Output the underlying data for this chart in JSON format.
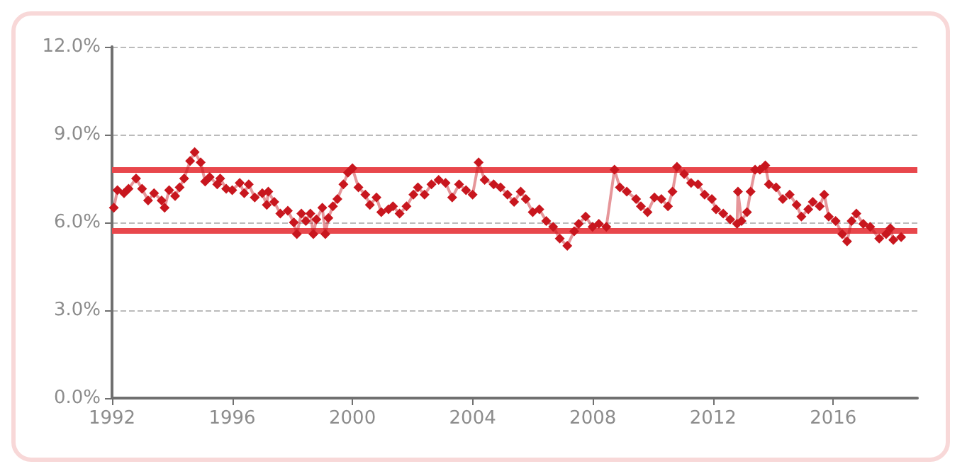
{
  "chart_data": {
    "type": "line",
    "marker": "diamond",
    "x": [
      1992.06,
      1992.18,
      1992.4,
      1992.55,
      1992.8,
      1993.0,
      1993.2,
      1993.4,
      1993.65,
      1993.75,
      1993.9,
      1994.1,
      1994.25,
      1994.4,
      1994.6,
      1994.75,
      1994.95,
      1995.1,
      1995.25,
      1995.5,
      1995.6,
      1995.8,
      1996.0,
      1996.25,
      1996.4,
      1996.55,
      1996.75,
      1997.0,
      1997.15,
      1997.2,
      1997.4,
      1997.6,
      1997.85,
      1998.05,
      1998.15,
      1998.3,
      1998.45,
      1998.6,
      1998.7,
      1998.8,
      1999.0,
      1999.1,
      1999.2,
      1999.35,
      1999.5,
      1999.7,
      1999.85,
      2000.0,
      2000.2,
      2000.43,
      2000.58,
      2000.8,
      2000.96,
      2001.2,
      2001.35,
      2001.57,
      2001.8,
      2002.03,
      2002.18,
      2002.4,
      2002.63,
      2002.87,
      2003.1,
      2003.32,
      2003.55,
      2003.78,
      2004.0,
      2004.2,
      2004.4,
      2004.7,
      2004.93,
      2005.16,
      2005.38,
      2005.6,
      2005.77,
      2006.0,
      2006.22,
      2006.45,
      2006.68,
      2006.9,
      2007.15,
      2007.38,
      2007.53,
      2007.76,
      2007.99,
      2008.2,
      2008.45,
      2008.72,
      2008.9,
      2009.13,
      2009.44,
      2009.6,
      2009.82,
      2010.05,
      2010.28,
      2010.5,
      2010.65,
      2010.8,
      2011.04,
      2011.27,
      2011.5,
      2011.72,
      2011.96,
      2012.1,
      2012.34,
      2012.57,
      2012.8,
      2012.83,
      2012.95,
      2013.13,
      2013.25,
      2013.4,
      2013.56,
      2013.74,
      2013.86,
      2014.1,
      2014.32,
      2014.55,
      2014.78,
      2014.94,
      2015.17,
      2015.32,
      2015.55,
      2015.7,
      2015.85,
      2016.08,
      2016.3,
      2016.46,
      2016.61,
      2016.77,
      2017.0,
      2017.23,
      2017.53,
      2017.76,
      2017.9,
      2018.0,
      2018.26
    ],
    "series": [
      {
        "color": "#c8161e",
        "values": [
          6.5,
          7.1,
          7.0,
          7.15,
          7.5,
          7.15,
          6.75,
          7.0,
          6.75,
          6.5,
          7.1,
          6.9,
          7.2,
          7.5,
          8.1,
          8.4,
          8.05,
          7.4,
          7.55,
          7.3,
          7.5,
          7.15,
          7.1,
          7.35,
          7.0,
          7.3,
          6.85,
          7.0,
          6.6,
          7.05,
          6.7,
          6.3,
          6.4,
          6.0,
          5.6,
          6.3,
          6.05,
          6.3,
          5.6,
          6.1,
          6.5,
          5.6,
          6.15,
          6.55,
          6.8,
          7.3,
          7.7,
          7.85,
          7.2,
          6.95,
          6.6,
          6.85,
          6.35,
          6.45,
          6.55,
          6.3,
          6.55,
          6.95,
          7.2,
          6.95,
          7.3,
          7.45,
          7.35,
          6.85,
          7.3,
          7.1,
          6.95,
          8.05,
          7.45,
          7.3,
          7.2,
          6.95,
          6.7,
          7.05,
          6.8,
          6.35,
          6.45,
          6.05,
          5.85,
          5.45,
          5.2,
          5.7,
          5.95,
          6.2,
          5.85,
          5.95,
          5.85,
          7.8,
          7.2,
          7.05,
          6.8,
          6.55,
          6.35,
          6.85,
          6.8,
          6.55,
          7.05,
          7.9,
          7.65,
          7.35,
          7.3,
          6.95,
          6.8,
          6.45,
          6.3,
          6.1,
          5.95,
          7.05,
          6.05,
          6.35,
          7.05,
          7.8,
          7.8,
          7.95,
          7.3,
          7.2,
          6.8,
          6.95,
          6.6,
          6.2,
          6.45,
          6.7,
          6.55,
          6.95,
          6.2,
          6.05,
          5.6,
          5.35,
          6.05,
          6.3,
          5.95,
          5.85,
          5.45,
          5.6,
          5.8,
          5.4,
          5.5
        ]
      }
    ],
    "xlim": [
      1992,
      2018.8
    ],
    "xticks": [
      1992,
      1996,
      2000,
      2004,
      2008,
      2012,
      2016
    ],
    "ylim": [
      0,
      12
    ],
    "yticks": [
      {
        "value": 0,
        "label": "0.0%"
      },
      {
        "value": 3,
        "label": "3.0%"
      },
      {
        "value": 6,
        "label": "6.0%"
      },
      {
        "value": 9,
        "label": "9.0%"
      },
      {
        "value": 12,
        "label": "12.0%"
      }
    ],
    "grid": "y",
    "ref_lines": [
      {
        "axis": "y",
        "value": 7.8,
        "color": "#e8474c"
      },
      {
        "axis": "y",
        "value": 5.7,
        "color": "#e8474c"
      }
    ]
  }
}
